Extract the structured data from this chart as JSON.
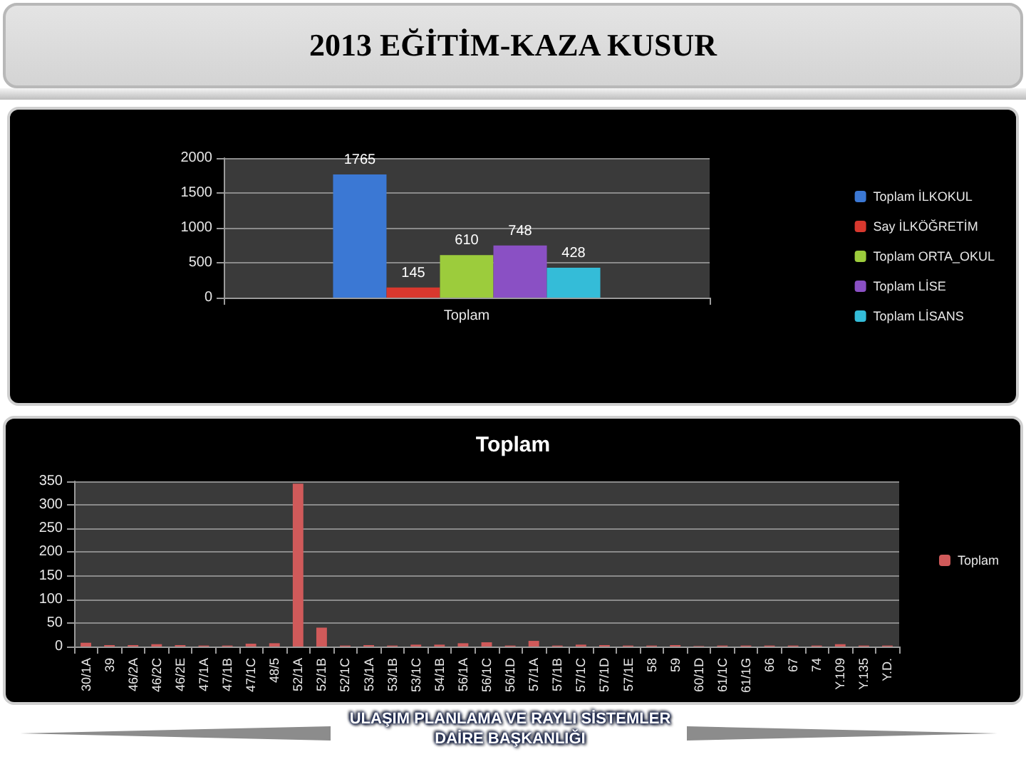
{
  "chart_data": [
    {
      "type": "bar",
      "title": "2013 EĞİTİM-KAZA KUSUR",
      "categories": [
        "Toplam"
      ],
      "series": [
        {
          "name": "Toplam İLKOKUL",
          "color": "#3b78d4",
          "values": [
            1765
          ]
        },
        {
          "name": "Say İLKÖĞRETİM",
          "color": "#d8382e",
          "values": [
            145
          ]
        },
        {
          "name": "Toplam ORTA_OKUL",
          "color": "#9ccc3c",
          "values": [
            610
          ]
        },
        {
          "name": "Toplam LİSE",
          "color": "#8a50c4",
          "values": [
            748
          ]
        },
        {
          "name": "Toplam LİSANS",
          "color": "#34bcd8",
          "values": [
            428
          ]
        }
      ],
      "ylim": [
        0,
        2000
      ],
      "yticks": [
        0,
        500,
        1000,
        1500,
        2000
      ],
      "grid": "y",
      "legend": "right",
      "data_labels": true
    },
    {
      "type": "bar",
      "title": "Toplam",
      "categories": [
        "30/1A",
        "39",
        "46/2A",
        "46/2C",
        "46/2E",
        "47/1A",
        "47/1B",
        "47/1C",
        "48/5",
        "52/1A",
        "52/1B",
        "52/1C",
        "53/1A",
        "53/1B",
        "53/1C",
        "54/1B",
        "56/1A",
        "56/1C",
        "56/1D",
        "57/1A",
        "57/1B",
        "57/1C",
        "57/1D",
        "57/1E",
        "58",
        "59",
        "60/1D",
        "61/1C",
        "61/1G",
        "66",
        "67",
        "74",
        "Y.109",
        "Y.135",
        "Y.D."
      ],
      "series": [
        {
          "name": "Toplam",
          "color": "#d05a5a",
          "values": [
            8,
            3,
            3,
            5,
            3,
            2,
            2,
            6,
            7,
            345,
            40,
            2,
            3,
            2,
            4,
            4,
            7,
            9,
            2,
            12,
            2,
            4,
            3,
            2,
            2,
            3,
            1,
            2,
            2,
            2,
            2,
            2,
            5,
            2,
            2
          ]
        }
      ],
      "ylim": [
        0,
        350
      ],
      "yticks": [
        0,
        50,
        100,
        150,
        200,
        250,
        300,
        350
      ],
      "grid": "y",
      "legend": "right",
      "annotations": [
        "ULAŞIM PLANLAMA VE RAYLI SİSTEMLER\nDAİRE BAŞKANLIĞI"
      ]
    }
  ]
}
